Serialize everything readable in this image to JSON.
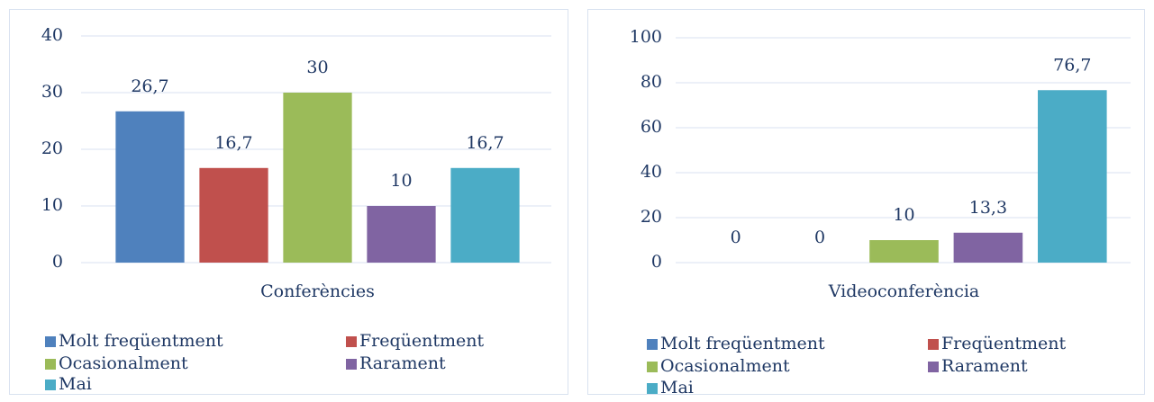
{
  "chart_data": [
    {
      "type": "bar",
      "categories": [
        "Conferències"
      ],
      "ylim": [
        0,
        40
      ],
      "yticks": [
        0,
        10,
        20,
        30,
        40
      ],
      "grid": true,
      "series": [
        {
          "name": "Molt freqüentment",
          "color": "#4f81bd",
          "values": [
            26.7
          ],
          "value_labels": [
            "26,7"
          ]
        },
        {
          "name": "Freqüentment",
          "color": "#c0504d",
          "values": [
            16.7
          ],
          "value_labels": [
            "16,7"
          ]
        },
        {
          "name": "Ocasionalment",
          "color": "#9bbb59",
          "values": [
            30
          ]
        },
        {
          "name": "Rarament",
          "color": "#8064a2",
          "values": [
            10
          ]
        },
        {
          "name": "Mai",
          "color": "#4bacc6",
          "values": [
            16.7
          ],
          "value_labels": [
            "16,7"
          ]
        }
      ]
    },
    {
      "type": "bar",
      "categories": [
        "Videoconferència"
      ],
      "ylim": [
        0,
        100
      ],
      "yticks": [
        0,
        20,
        40,
        60,
        80,
        100
      ],
      "grid": true,
      "series": [
        {
          "name": "Molt freqüentment",
          "color": "#4f81bd",
          "values": [
            0
          ]
        },
        {
          "name": "Freqüentment",
          "color": "#c0504d",
          "values": [
            0
          ]
        },
        {
          "name": "Ocasionalment",
          "color": "#9bbb59",
          "values": [
            10
          ]
        },
        {
          "name": "Rarament",
          "color": "#8064a2",
          "values": [
            13.3
          ],
          "value_labels": [
            "13,3"
          ]
        },
        {
          "name": "Mai",
          "color": "#4bacc6",
          "values": [
            76.7
          ],
          "value_labels": [
            "76,7"
          ]
        }
      ]
    }
  ]
}
